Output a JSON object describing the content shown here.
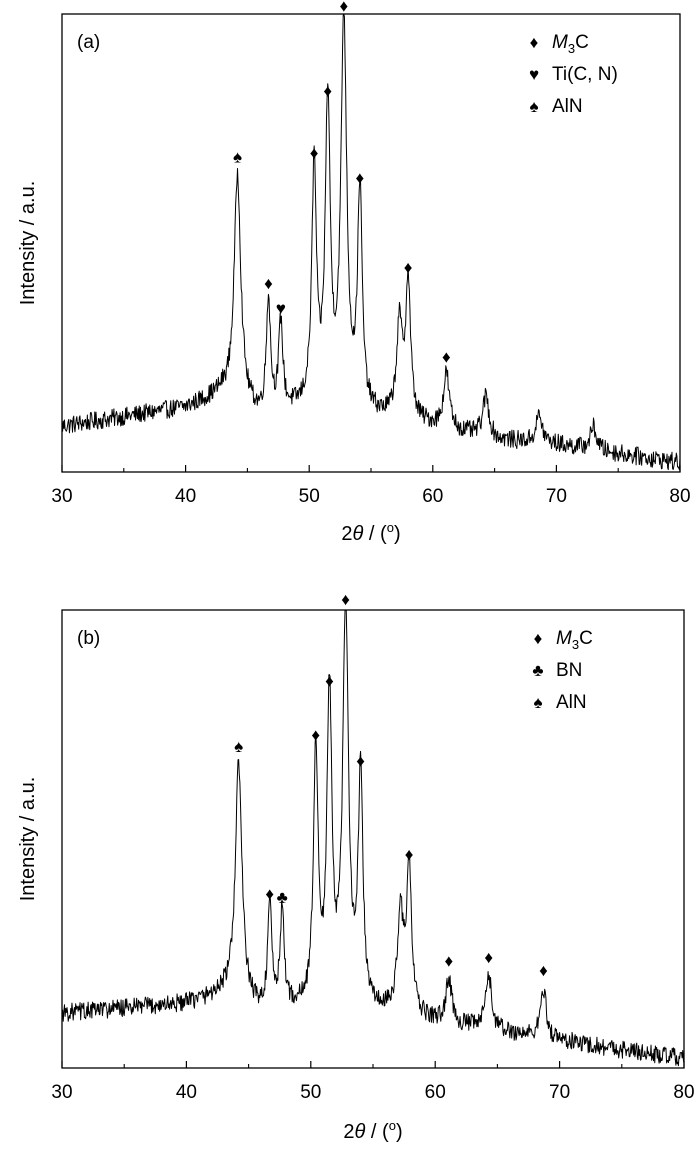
{
  "chart_data": [
    {
      "type": "line",
      "panel_label": "(a)",
      "xlabel_parts": [
        "2",
        "θ",
        " / (",
        "o",
        ")"
      ],
      "ylabel": "Intensity / a.u.",
      "xlim": [
        30,
        80
      ],
      "ylim": [
        0,
        100
      ],
      "x_ticks": [
        "30",
        "40",
        "50",
        "60",
        "70",
        "80"
      ],
      "grid": false,
      "legend_position": "top-right",
      "legend": [
        {
          "symbol": "diamond",
          "glyph": "♦",
          "prefix": "M",
          "sub": "3",
          "suffix": "C"
        },
        {
          "symbol": "heart",
          "glyph": "♥",
          "prefix": "Ti(C, N)",
          "sub": "",
          "suffix": ""
        },
        {
          "symbol": "spade",
          "glyph": "♠",
          "prefix": "AlN",
          "sub": "",
          "suffix": ""
        }
      ],
      "peaks": [
        {
          "x": 44.2,
          "h": 50.0,
          "w": 0.32,
          "symbol": "spade",
          "glyph": "♠"
        },
        {
          "x": 46.7,
          "h": 25.0,
          "w": 0.2,
          "symbol": "diamond",
          "glyph": "♦"
        },
        {
          "x": 47.7,
          "h": 19.0,
          "w": 0.2,
          "symbol": "heart",
          "glyph": "♥"
        },
        {
          "x": 50.4,
          "h": 52.0,
          "w": 0.22,
          "symbol": "diamond",
          "glyph": "♦"
        },
        {
          "x": 51.5,
          "h": 66.0,
          "w": 0.24,
          "symbol": "diamond",
          "glyph": "♦"
        },
        {
          "x": 52.8,
          "h": 85.0,
          "w": 0.28,
          "symbol": "diamond",
          "glyph": "♦"
        },
        {
          "x": 54.1,
          "h": 48.0,
          "w": 0.22,
          "symbol": "diamond",
          "glyph": "♦"
        },
        {
          "x": 57.3,
          "h": 20.0,
          "w": 0.28,
          "symbol": "",
          "glyph": ""
        },
        {
          "x": 58.0,
          "h": 30.0,
          "w": 0.24,
          "symbol": "diamond",
          "glyph": "♦"
        },
        {
          "x": 61.1,
          "h": 12.0,
          "w": 0.28,
          "symbol": "diamond",
          "glyph": "♦"
        },
        {
          "x": 64.3,
          "h": 9.0,
          "w": 0.3,
          "symbol": "",
          "glyph": ""
        },
        {
          "x": 68.6,
          "h": 6.0,
          "w": 0.3,
          "symbol": "",
          "glyph": ""
        },
        {
          "x": 73.0,
          "h": 5.0,
          "w": 0.3,
          "symbol": "",
          "glyph": ""
        }
      ],
      "background": [
        [
          30,
          10
        ],
        [
          35,
          12
        ],
        [
          40,
          14
        ],
        [
          43,
          17
        ],
        [
          46,
          12
        ],
        [
          50,
          14
        ],
        [
          55,
          12
        ],
        [
          60,
          10
        ],
        [
          65,
          7
        ],
        [
          70,
          6
        ],
        [
          75,
          4
        ],
        [
          80,
          2
        ]
      ]
    },
    {
      "type": "line",
      "panel_label": "(b)",
      "xlabel_parts": [
        "2",
        "θ",
        " / (",
        "o",
        ")"
      ],
      "ylabel": "Intensity / a.u.",
      "xlim": [
        30,
        80
      ],
      "ylim": [
        0,
        100
      ],
      "x_ticks": [
        "30",
        "40",
        "50",
        "60",
        "70",
        "80"
      ],
      "grid": false,
      "legend_position": "top-right",
      "legend": [
        {
          "symbol": "diamond",
          "glyph": "♦",
          "prefix": "M",
          "sub": "3",
          "suffix": "C"
        },
        {
          "symbol": "club",
          "glyph": "♣",
          "prefix": "BN",
          "sub": "",
          "suffix": ""
        },
        {
          "symbol": "spade",
          "glyph": "♠",
          "prefix": "AlN",
          "sub": "",
          "suffix": ""
        }
      ],
      "peaks": [
        {
          "x": 44.2,
          "h": 52.0,
          "w": 0.32,
          "symbol": "spade",
          "glyph": "♠"
        },
        {
          "x": 46.7,
          "h": 22.0,
          "w": 0.2,
          "symbol": "diamond",
          "glyph": "♦"
        },
        {
          "x": 47.7,
          "h": 21.0,
          "w": 0.2,
          "symbol": "club",
          "glyph": "♣"
        },
        {
          "x": 50.4,
          "h": 56.0,
          "w": 0.22,
          "symbol": "diamond",
          "glyph": "♦"
        },
        {
          "x": 51.5,
          "h": 68.0,
          "w": 0.24,
          "symbol": "diamond",
          "glyph": "♦"
        },
        {
          "x": 52.8,
          "h": 86.0,
          "w": 0.28,
          "symbol": "diamond",
          "glyph": "♦"
        },
        {
          "x": 54.0,
          "h": 51.0,
          "w": 0.22,
          "symbol": "diamond",
          "glyph": "♦"
        },
        {
          "x": 57.2,
          "h": 22.0,
          "w": 0.28,
          "symbol": "",
          "glyph": ""
        },
        {
          "x": 57.9,
          "h": 32.0,
          "w": 0.24,
          "symbol": "diamond",
          "glyph": "♦"
        },
        {
          "x": 61.1,
          "h": 10.0,
          "w": 0.26,
          "symbol": "diamond",
          "glyph": "♦"
        },
        {
          "x": 64.3,
          "h": 12.0,
          "w": 0.28,
          "symbol": "diamond",
          "glyph": "♦"
        },
        {
          "x": 68.7,
          "h": 11.0,
          "w": 0.26,
          "symbol": "diamond",
          "glyph": "♦"
        }
      ],
      "background": [
        [
          30,
          12
        ],
        [
          35,
          13
        ],
        [
          40,
          14
        ],
        [
          43,
          16
        ],
        [
          46,
          12
        ],
        [
          50,
          13
        ],
        [
          55,
          12
        ],
        [
          60,
          10
        ],
        [
          65,
          8
        ],
        [
          70,
          6
        ],
        [
          75,
          4
        ],
        [
          80,
          2
        ]
      ]
    }
  ]
}
